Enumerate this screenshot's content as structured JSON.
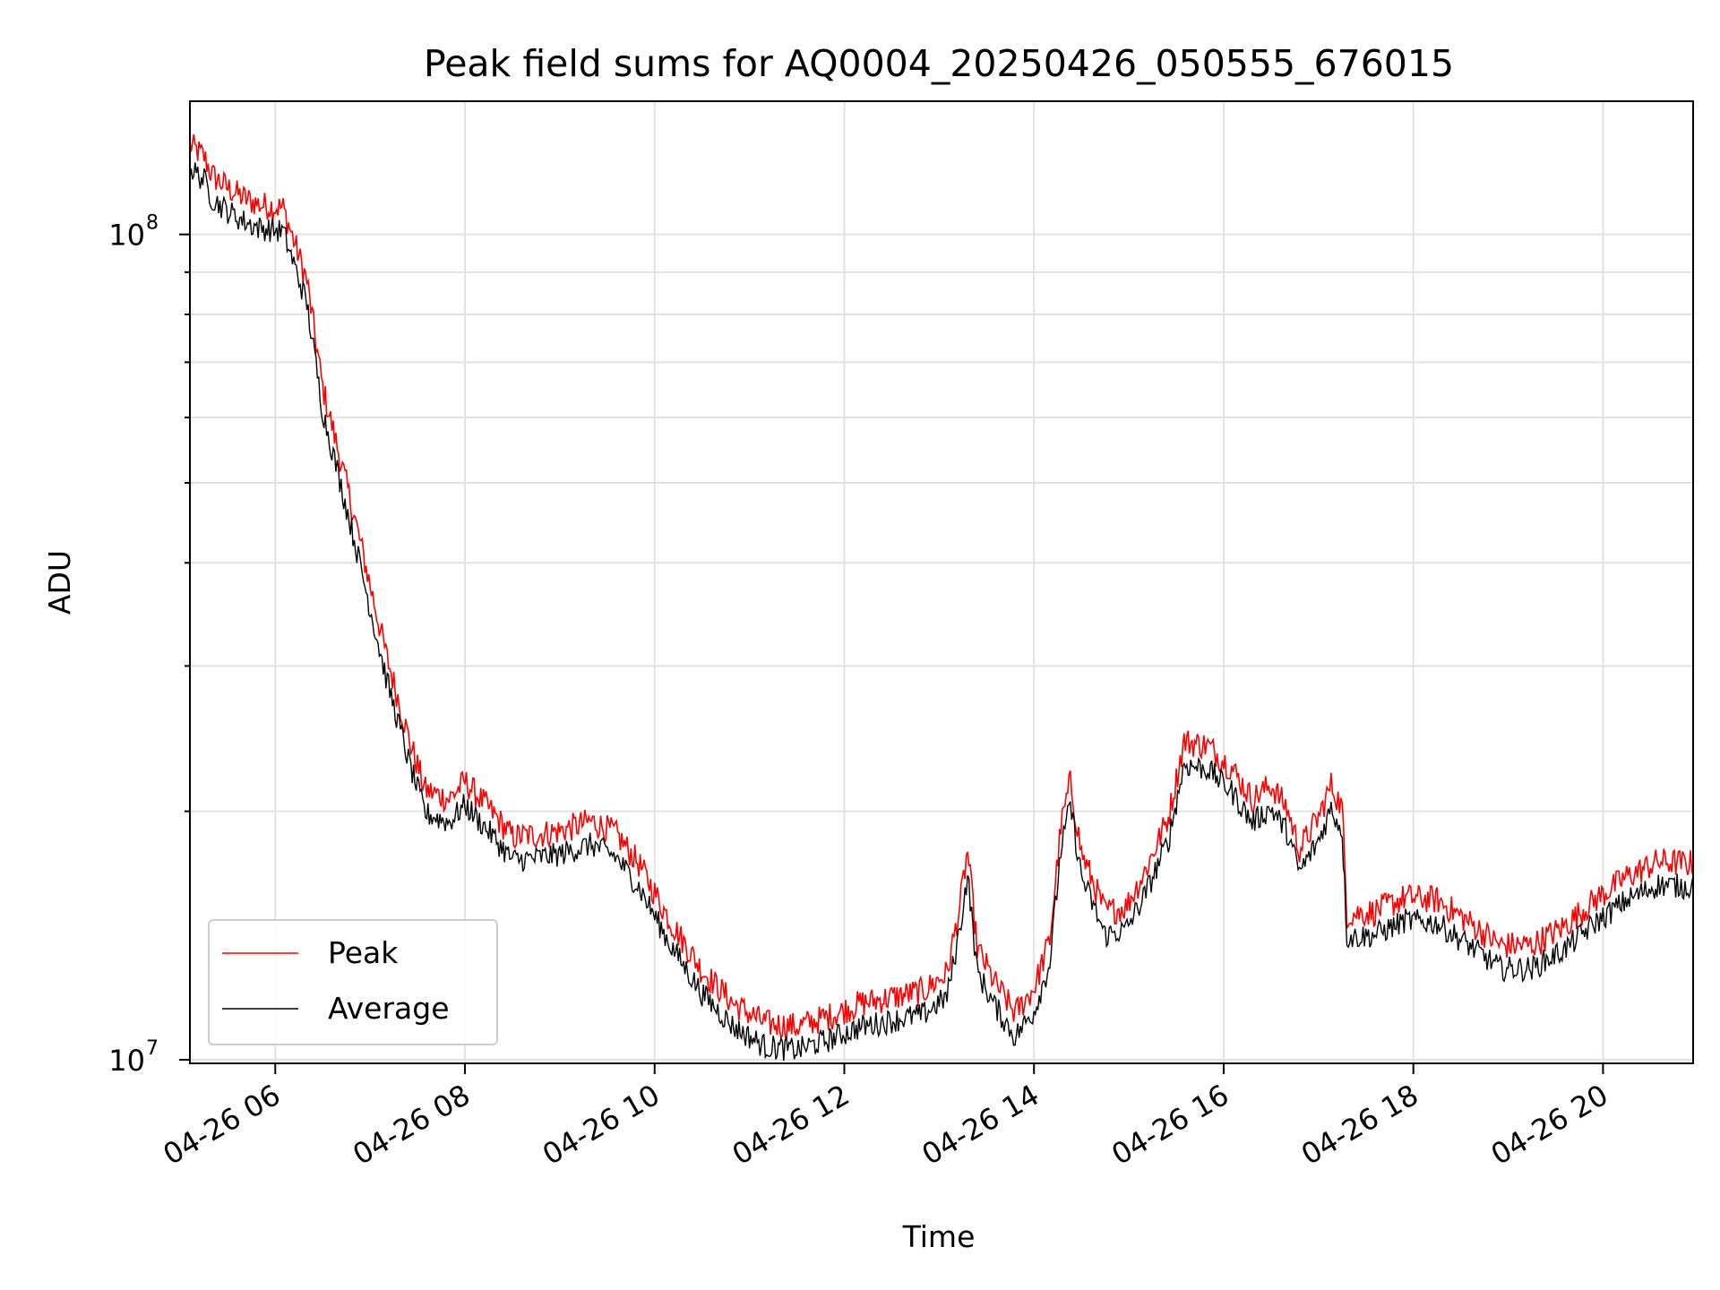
{
  "chart_data": {
    "type": "line",
    "title": "Peak field sums for AQ0004_20250426_050555_676015",
    "xlabel": "Time",
    "ylabel": "ADU",
    "yscale": "log",
    "grid": true,
    "legend_position": "lower-left",
    "xlim": [
      "2025-04-26 05:06",
      "2025-04-26 20:57"
    ],
    "ylim": [
      9900000,
      145000000
    ],
    "x_ticks": [
      "2025-04-26 06:00",
      "2025-04-26 08:00",
      "2025-04-26 10:00",
      "2025-04-26 12:00",
      "2025-04-26 14:00",
      "2025-04-26 16:00",
      "2025-04-26 18:00",
      "2025-04-26 20:00"
    ],
    "x_tick_labels": [
      "04-26 06",
      "04-26 08",
      "04-26 10",
      "04-26 12",
      "04-26 14",
      "04-26 16",
      "04-26 18",
      "04-26 20"
    ],
    "y_ticks": [
      10000000,
      100000000
    ],
    "y_tick_labels": [
      {
        "base": "10",
        "exp": "7"
      },
      {
        "base": "10",
        "exp": "8"
      }
    ],
    "series": [
      {
        "name": "Peak",
        "color": "#ff0000",
        "points": [
          [
            "2025-04-26 05:06",
            124000000
          ],
          [
            "2025-04-26 05:15",
            120000000
          ],
          [
            "2025-04-26 05:20",
            114000000
          ],
          [
            "2025-04-26 05:30",
            110000000
          ],
          [
            "2025-04-26 05:40",
            107000000
          ],
          [
            "2025-04-26 05:50",
            105000000
          ],
          [
            "2025-04-26 06:05",
            104000000
          ],
          [
            "2025-04-26 06:20",
            85000000
          ],
          [
            "2025-04-26 06:30",
            63000000
          ],
          [
            "2025-04-26 06:50",
            44000000
          ],
          [
            "2025-04-26 07:10",
            30000000
          ],
          [
            "2025-04-26 07:25",
            23500000
          ],
          [
            "2025-04-26 07:35",
            20500000
          ],
          [
            "2025-04-26 07:50",
            20000000
          ],
          [
            "2025-04-26 08:00",
            21000000
          ],
          [
            "2025-04-26 08:15",
            19500000
          ],
          [
            "2025-04-26 08:30",
            18000000
          ],
          [
            "2025-04-26 08:45",
            18100000
          ],
          [
            "2025-04-26 09:00",
            18300000
          ],
          [
            "2025-04-26 09:20",
            18800000
          ],
          [
            "2025-04-26 09:35",
            18200000
          ],
          [
            "2025-04-26 09:50",
            16700000
          ],
          [
            "2025-04-26 10:10",
            14200000
          ],
          [
            "2025-04-26 10:30",
            12400000
          ],
          [
            "2025-04-26 10:50",
            11300000
          ],
          [
            "2025-04-26 11:10",
            10700000
          ],
          [
            "2025-04-26 11:30",
            10600000
          ],
          [
            "2025-04-26 11:50",
            10900000
          ],
          [
            "2025-04-26 12:10",
            11300000
          ],
          [
            "2025-04-26 12:30",
            11500000
          ],
          [
            "2025-04-26 12:50",
            11700000
          ],
          [
            "2025-04-26 13:05",
            12300000
          ],
          [
            "2025-04-26 13:13",
            14800000
          ],
          [
            "2025-04-26 13:18",
            17300000
          ],
          [
            "2025-04-26 13:24",
            13200000
          ],
          [
            "2025-04-26 13:35",
            12000000
          ],
          [
            "2025-04-26 13:48",
            11000000
          ],
          [
            "2025-04-26 14:00",
            11800000
          ],
          [
            "2025-04-26 14:10",
            13500000
          ],
          [
            "2025-04-26 14:17",
            18500000
          ],
          [
            "2025-04-26 14:23",
            21000000
          ],
          [
            "2025-04-26 14:30",
            17200000
          ],
          [
            "2025-04-26 14:45",
            14600000
          ],
          [
            "2025-04-26 14:58",
            14800000
          ],
          [
            "2025-04-26 15:10",
            16300000
          ],
          [
            "2025-04-26 15:25",
            19000000
          ],
          [
            "2025-04-26 15:35",
            23500000
          ],
          [
            "2025-04-26 15:50",
            23200000
          ],
          [
            "2025-04-26 16:05",
            21800000
          ],
          [
            "2025-04-26 16:18",
            20000000
          ],
          [
            "2025-04-26 16:30",
            20800000
          ],
          [
            "2025-04-26 16:40",
            19500000
          ],
          [
            "2025-04-26 16:48",
            17400000
          ],
          [
            "2025-04-26 17:00",
            19000000
          ],
          [
            "2025-04-26 17:08",
            20800000
          ],
          [
            "2025-04-26 17:15",
            19500000
          ],
          [
            "2025-04-26 17:18",
            14500000
          ],
          [
            "2025-04-26 17:35",
            14600000
          ],
          [
            "2025-04-26 17:55",
            15200000
          ],
          [
            "2025-04-26 18:15",
            15100000
          ],
          [
            "2025-04-26 18:35",
            14200000
          ],
          [
            "2025-04-26 18:55",
            13300000
          ],
          [
            "2025-04-26 19:15",
            13300000
          ],
          [
            "2025-04-26 19:35",
            14000000
          ],
          [
            "2025-04-26 19:55",
            15100000
          ],
          [
            "2025-04-26 20:15",
            16100000
          ],
          [
            "2025-04-26 20:35",
            16800000
          ],
          [
            "2025-04-26 20:57",
            16700000
          ]
        ]
      }
    ]
  }
}
